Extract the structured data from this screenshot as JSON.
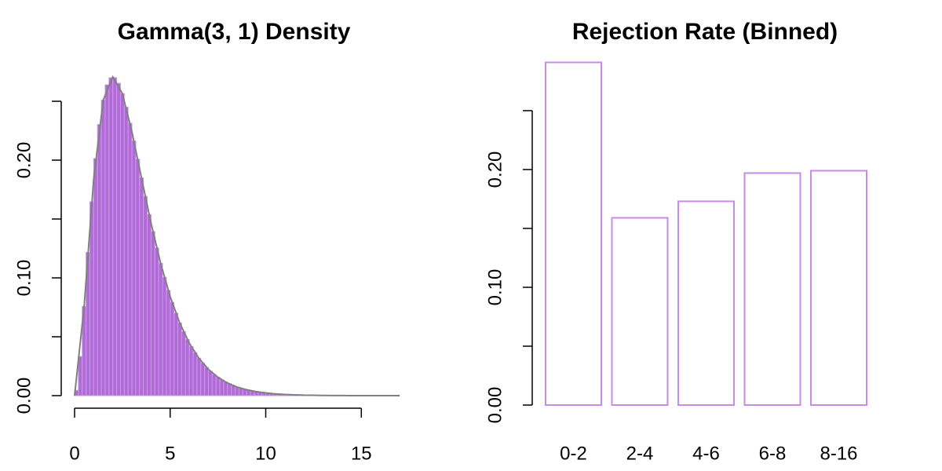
{
  "chart_data": [
    {
      "type": "histogram",
      "title": "Gamma(3, 1) Density",
      "bins": [
        0,
        0.2,
        0.4,
        0.6,
        0.8,
        1,
        1.2,
        1.4,
        1.6,
        1.8,
        2,
        2.2,
        2.4,
        2.6,
        2.8,
        3,
        3.2,
        3.4,
        3.6,
        3.8,
        4,
        4.2,
        4.4,
        4.6,
        4.8,
        5,
        5.2,
        5.4,
        5.6,
        5.8,
        6,
        6.2,
        6.4,
        6.6,
        6.8,
        7,
        7.2,
        7.4,
        7.6,
        7.8,
        8,
        8.2,
        8.4,
        8.6,
        8.8,
        9,
        9.2,
        9.4,
        9.6,
        9.8,
        10,
        10.2,
        10.4,
        10.6,
        10.8,
        11,
        11.2,
        11.4,
        11.6,
        11.8,
        12,
        12.2,
        12.4,
        12.6,
        12.8,
        13,
        13.2,
        13.4,
        13.6,
        13.8,
        14,
        14.2,
        14.4,
        14.6,
        14.8,
        15,
        15.2,
        15.4,
        15.6,
        15.8,
        16,
        16.2,
        16.4,
        16.6,
        16.8,
        17
      ],
      "values": [
        0.0045,
        0.0333,
        0.0758,
        0.1217,
        0.1647,
        0.2014,
        0.2303,
        0.251,
        0.264,
        0.27,
        0.2701,
        0.2653,
        0.2565,
        0.245,
        0.2314,
        0.2163,
        0.2008,
        0.185,
        0.1692,
        0.1538,
        0.1393,
        0.1254,
        0.1125,
        0.1005,
        0.0894,
        0.0793,
        0.0701,
        0.0618,
        0.0544,
        0.0477,
        0.0417,
        0.0365,
        0.0318,
        0.0276,
        0.024,
        0.0208,
        0.018,
        0.0156,
        0.0134,
        0.0116,
        0.01,
        0.0086,
        0.0073,
        0.0063,
        0.0054,
        0.0046,
        0.004,
        0.0034,
        0.0029,
        0.0025,
        0.0021,
        0.0018,
        0.0015,
        0.0013,
        0.0011,
        0.0009,
        0.0008,
        0.0007,
        0.0006,
        0.0005,
        0.0004,
        0.0004,
        0.0003,
        0.0003,
        0.0002,
        0.0002,
        0.0002,
        0.0001,
        0.0001,
        0.0001,
        0.0001,
        0.0001,
        0.0001,
        0.0001,
        0.0001,
        0,
        0,
        0,
        0,
        0,
        0,
        0,
        0,
        0,
        0.0001
      ],
      "color": "#b36ad9",
      "edge_color": "#c89be6",
      "density_curve": {
        "color": "#808080",
        "x": [
          0,
          0.5,
          1,
          1.5,
          2,
          2.5,
          3,
          3.5,
          4,
          4.5,
          5,
          5.5,
          6,
          6.5,
          7,
          7.5,
          8,
          8.5,
          9,
          9.5,
          10,
          10.5,
          11,
          11.5,
          12,
          12.5,
          13,
          13.5,
          14,
          14.5,
          15,
          15.5,
          16,
          16.5,
          17
        ],
        "values": [
          0,
          0.0758,
          0.1839,
          0.251,
          0.2707,
          0.2565,
          0.224,
          0.185,
          0.1465,
          0.1125,
          0.0842,
          0.0618,
          0.0446,
          0.0318,
          0.0223,
          0.0156,
          0.0107,
          0.0073,
          0.005,
          0.0034,
          0.0023,
          0.0015,
          0.001,
          0.0007,
          0.0004,
          0.0003,
          0.0002,
          0.0001,
          0.0001,
          0,
          0,
          0,
          0,
          0,
          0
        ]
      },
      "xlim": [
        0,
        17
      ],
      "xticks": [
        0,
        5,
        10,
        15
      ],
      "ylim": [
        0,
        0.272
      ],
      "yticks": [
        {
          "value": 0,
          "label": "0.00"
        },
        {
          "value": 0.05
        },
        {
          "value": 0.1,
          "label": "0.10"
        },
        {
          "value": 0.15
        },
        {
          "value": 0.2,
          "label": "0.20"
        },
        {
          "value": 0.25
        }
      ]
    },
    {
      "type": "bar",
      "title": "Rejection Rate (Binned)",
      "categories": [
        "0-2",
        "2-4",
        "4-6",
        "6-8",
        "8-16"
      ],
      "values": [
        0.291,
        0.159,
        0.173,
        0.197,
        0.199
      ],
      "color": "#c98be8",
      "ylim": [
        0,
        0.2913
      ],
      "yticks": [
        {
          "value": 0,
          "label": "0.00"
        },
        {
          "value": 0.05
        },
        {
          "value": 0.1,
          "label": "0.10"
        },
        {
          "value": 0.15
        },
        {
          "value": 0.2,
          "label": "0.20"
        },
        {
          "value": 0.25
        }
      ]
    }
  ]
}
